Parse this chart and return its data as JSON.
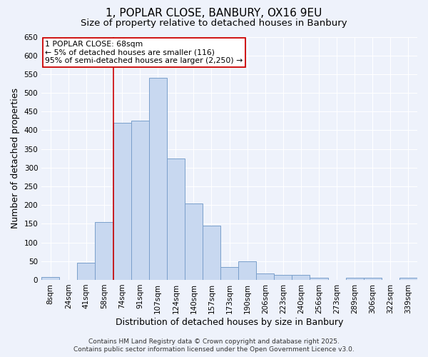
{
  "title": "1, POPLAR CLOSE, BANBURY, OX16 9EU",
  "subtitle": "Size of property relative to detached houses in Banbury",
  "xlabel": "Distribution of detached houses by size in Banbury",
  "ylabel": "Number of detached properties",
  "categories": [
    "8sqm",
    "24sqm",
    "41sqm",
    "58sqm",
    "74sqm",
    "91sqm",
    "107sqm",
    "124sqm",
    "140sqm",
    "157sqm",
    "173sqm",
    "190sqm",
    "206sqm",
    "223sqm",
    "240sqm",
    "256sqm",
    "273sqm",
    "289sqm",
    "306sqm",
    "322sqm",
    "339sqm"
  ],
  "bar_values": [
    7,
    0,
    45,
    155,
    420,
    425,
    540,
    325,
    205,
    145,
    35,
    50,
    17,
    14,
    14,
    6,
    0,
    5,
    5,
    0,
    5
  ],
  "bar_color": "#c8d8f0",
  "bar_edge_color": "#7a9fcb",
  "ylim": [
    0,
    650
  ],
  "yticks": [
    0,
    50,
    100,
    150,
    200,
    250,
    300,
    350,
    400,
    450,
    500,
    550,
    600,
    650
  ],
  "red_line_x": 3.5,
  "annotation_title": "1 POPLAR CLOSE: 68sqm",
  "annotation_line1": "← 5% of detached houses are smaller (116)",
  "annotation_line2": "95% of semi-detached houses are larger (2,250) →",
  "annotation_box_color": "#ffffff",
  "annotation_box_edge": "#cc0000",
  "red_line_color": "#cc0000",
  "footer1": "Contains HM Land Registry data © Crown copyright and database right 2025.",
  "footer2": "Contains public sector information licensed under the Open Government Licence v3.0.",
  "bg_color": "#eef2fb",
  "grid_color": "#ffffff",
  "title_fontsize": 11,
  "subtitle_fontsize": 9.5,
  "axis_label_fontsize": 9,
  "tick_fontsize": 7.5,
  "footer_fontsize": 6.5,
  "annotation_fontsize": 7.8
}
